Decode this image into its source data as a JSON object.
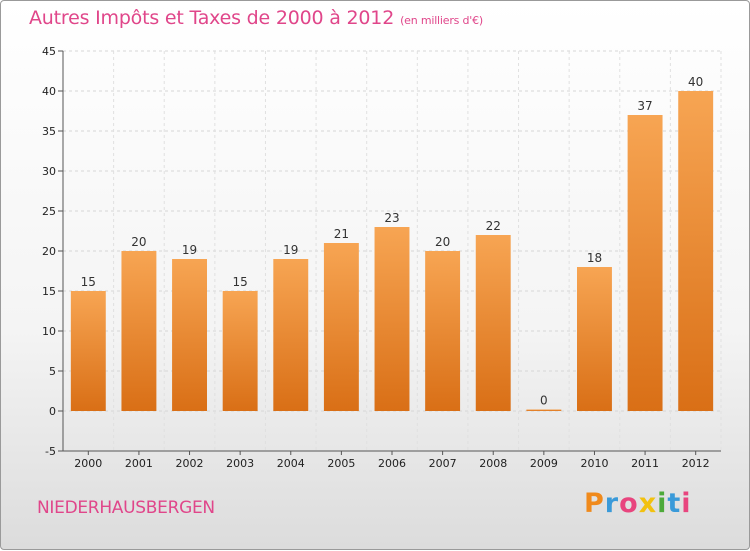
{
  "title": "Autres Impôts et Taxes de 2000 à 2012",
  "subtitle": "(en milliers d'€)",
  "city": "NIEDERHAUSBERGEN",
  "logo": {
    "letters": [
      "P",
      "r",
      "o",
      "x",
      "i",
      "t",
      "i"
    ],
    "colors": [
      "#f08a1c",
      "#3a9ad9",
      "#e8457e",
      "#f2c10f",
      "#4daa3a",
      "#3a9ad9",
      "#e8457e"
    ]
  },
  "chart_data": {
    "type": "bar",
    "categories": [
      "2000",
      "2001",
      "2002",
      "2003",
      "2004",
      "2005",
      "2006",
      "2007",
      "2008",
      "2009",
      "2010",
      "2011",
      "2012"
    ],
    "values": [
      15,
      20,
      19,
      15,
      19,
      21,
      23,
      20,
      22,
      0,
      18,
      37,
      40
    ],
    "ylim": [
      -5,
      45
    ],
    "yticks": [
      -5,
      0,
      5,
      10,
      15,
      20,
      25,
      30,
      35,
      40,
      45
    ],
    "grid": true,
    "bar_color": "#f39a45"
  }
}
